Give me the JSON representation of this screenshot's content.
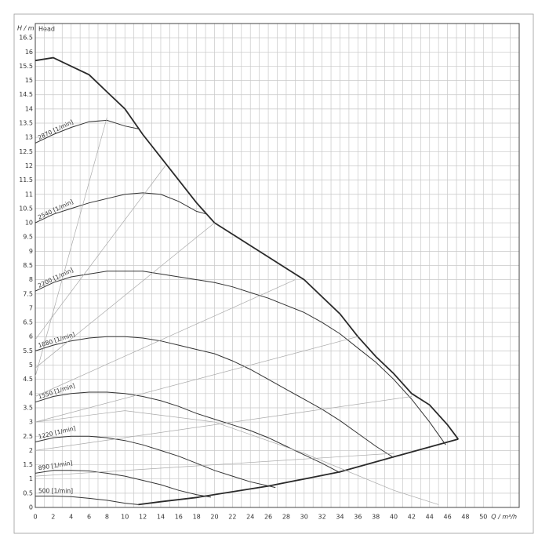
{
  "chart_data": {
    "type": "line",
    "ylabel": "H / m",
    "annotation": "Head",
    "xlabel": "Q / m³/h",
    "xlim": [
      0,
      54
    ],
    "ylim": [
      0,
      17
    ],
    "xticks": [
      0,
      2,
      4,
      6,
      8,
      10,
      12,
      14,
      16,
      18,
      20,
      22,
      24,
      26,
      28,
      30,
      32,
      34,
      36,
      38,
      40,
      42,
      44,
      46,
      48,
      50
    ],
    "yticks": [
      0,
      0.5,
      1,
      1.5,
      2,
      2.5,
      3,
      3.5,
      4,
      4.5,
      5,
      5.5,
      6,
      6.5,
      7,
      7.5,
      8,
      8.5,
      9,
      9.5,
      10,
      10.5,
      11,
      11.5,
      12,
      12.5,
      13,
      13.5,
      14,
      14.5,
      15,
      15.5,
      16,
      16.5
    ],
    "grid": true,
    "series": [
      {
        "color": "#2a2a2a",
        "lineWidth": 1.8,
        "x": [
          0,
          2,
          4,
          6,
          8,
          10,
          12,
          14,
          16,
          18,
          20,
          22,
          24,
          26,
          28,
          30,
          32,
          34,
          36,
          38,
          40,
          42,
          44,
          46,
          47.2
        ],
        "values": [
          15.7,
          15.8,
          15.5,
          15.2,
          14.6,
          14.0,
          13.1,
          12.3,
          11.5,
          10.7,
          10.0,
          9.6,
          9.2,
          8.8,
          8.4,
          8.0,
          7.4,
          6.8,
          6.0,
          5.3,
          4.7,
          4.0,
          3.6,
          2.9,
          2.4
        ]
      },
      {
        "color": "#2a2a2a",
        "lineWidth": 1.8,
        "x": [
          11.5,
          14,
          18,
          22,
          26,
          30,
          34,
          38,
          42,
          47.2
        ],
        "values": [
          0.1,
          0.2,
          0.35,
          0.55,
          0.75,
          1.0,
          1.25,
          1.6,
          1.95,
          2.4
        ]
      },
      {
        "name": "2870 [1/min]",
        "color": "#333333",
        "lineWidth": 1,
        "x": [
          0,
          2,
          4,
          6,
          8,
          10,
          11.5
        ],
        "values": [
          12.8,
          13.1,
          13.35,
          13.55,
          13.6,
          13.4,
          13.3
        ]
      },
      {
        "name": "2540 [1/min]",
        "color": "#333333",
        "lineWidth": 1,
        "x": [
          0,
          2,
          4,
          6,
          8,
          10,
          12,
          14,
          16,
          18,
          19.2
        ],
        "values": [
          10.0,
          10.3,
          10.5,
          10.7,
          10.85,
          11.0,
          11.05,
          11.0,
          10.75,
          10.4,
          10.3
        ]
      },
      {
        "name": "2200 [1/min]",
        "color": "#333333",
        "lineWidth": 1,
        "x": [
          0,
          2,
          4,
          6,
          8,
          10,
          12,
          14,
          16,
          18,
          20,
          22,
          24,
          26,
          28,
          30,
          32,
          34,
          36,
          38,
          40,
          42,
          44,
          45.8
        ],
        "values": [
          7.6,
          7.9,
          8.1,
          8.2,
          8.3,
          8.3,
          8.3,
          8.2,
          8.1,
          8.0,
          7.9,
          7.75,
          7.55,
          7.35,
          7.1,
          6.85,
          6.5,
          6.1,
          5.6,
          5.1,
          4.5,
          3.8,
          3.0,
          2.2
        ]
      },
      {
        "name": "1880 [1/min]",
        "color": "#333333",
        "lineWidth": 1,
        "x": [
          0,
          2,
          4,
          6,
          8,
          10,
          12,
          14,
          16,
          18,
          20,
          22,
          24,
          26,
          28,
          30,
          32,
          34,
          36,
          38,
          40
        ],
        "values": [
          5.5,
          5.7,
          5.85,
          5.95,
          6.0,
          6.0,
          5.95,
          5.85,
          5.7,
          5.55,
          5.4,
          5.15,
          4.85,
          4.5,
          4.15,
          3.8,
          3.45,
          3.05,
          2.6,
          2.15,
          1.75
        ]
      },
      {
        "name": "1550 [1/min]",
        "color": "#333333",
        "lineWidth": 1,
        "x": [
          0,
          2,
          4,
          6,
          8,
          10,
          12,
          14,
          16,
          18,
          20,
          22,
          24,
          26,
          28,
          30,
          32,
          34
        ],
        "values": [
          3.7,
          3.9,
          4.0,
          4.05,
          4.05,
          4.0,
          3.9,
          3.75,
          3.55,
          3.3,
          3.1,
          2.9,
          2.7,
          2.45,
          2.15,
          1.85,
          1.55,
          1.22
        ]
      },
      {
        "name": "1220 [1/min]",
        "color": "#333333",
        "lineWidth": 1,
        "x": [
          0,
          2,
          4,
          6,
          8,
          10,
          12,
          14,
          16,
          18,
          20,
          22,
          24,
          26.8
        ],
        "values": [
          2.3,
          2.45,
          2.5,
          2.5,
          2.45,
          2.35,
          2.2,
          2.0,
          1.8,
          1.55,
          1.3,
          1.1,
          0.9,
          0.7
        ]
      },
      {
        "name": "890 [1/min]",
        "color": "#333333",
        "lineWidth": 1,
        "x": [
          0,
          2,
          4,
          6,
          8,
          10,
          12,
          14,
          16,
          18,
          19.6
        ],
        "values": [
          1.2,
          1.3,
          1.3,
          1.28,
          1.2,
          1.1,
          0.95,
          0.8,
          0.6,
          0.45,
          0.36
        ]
      },
      {
        "name": "500 [1/min]",
        "color": "#333333",
        "lineWidth": 1,
        "x": [
          0,
          2,
          4,
          6,
          8,
          10,
          11.5
        ],
        "values": [
          0.4,
          0.4,
          0.38,
          0.32,
          0.25,
          0.15,
          0.1
        ]
      },
      {
        "color": "#aaaaaa",
        "lineWidth": 0.7,
        "x": [
          0,
          8
        ],
        "values": [
          4.6,
          13.7
        ]
      },
      {
        "color": "#aaaaaa",
        "lineWidth": 0.7,
        "x": [
          0,
          14.5
        ],
        "values": [
          5.9,
          12.0
        ]
      },
      {
        "color": "#aaaaaa",
        "lineWidth": 0.7,
        "x": [
          0,
          20
        ],
        "values": [
          4.9,
          10.0
        ]
      },
      {
        "color": "#aaaaaa",
        "lineWidth": 0.7,
        "x": [
          0,
          29
        ],
        "values": [
          3.9,
          8.0
        ]
      },
      {
        "color": "#aaaaaa",
        "lineWidth": 0.7,
        "x": [
          0,
          36
        ],
        "values": [
          3.0,
          6.0
        ]
      },
      {
        "color": "#aaaaaa",
        "lineWidth": 0.7,
        "x": [
          0,
          42
        ],
        "values": [
          2.0,
          3.9
        ]
      },
      {
        "color": "#aaaaaa",
        "lineWidth": 0.7,
        "x": [
          0,
          40
        ],
        "values": [
          1.1,
          1.9
        ]
      },
      {
        "color": "#aaaaaa",
        "lineWidth": 0.7,
        "x": [
          0,
          10,
          20,
          30,
          40,
          45
        ],
        "values": [
          3.0,
          3.4,
          3.0,
          1.9,
          0.6,
          0.1
        ]
      }
    ]
  }
}
